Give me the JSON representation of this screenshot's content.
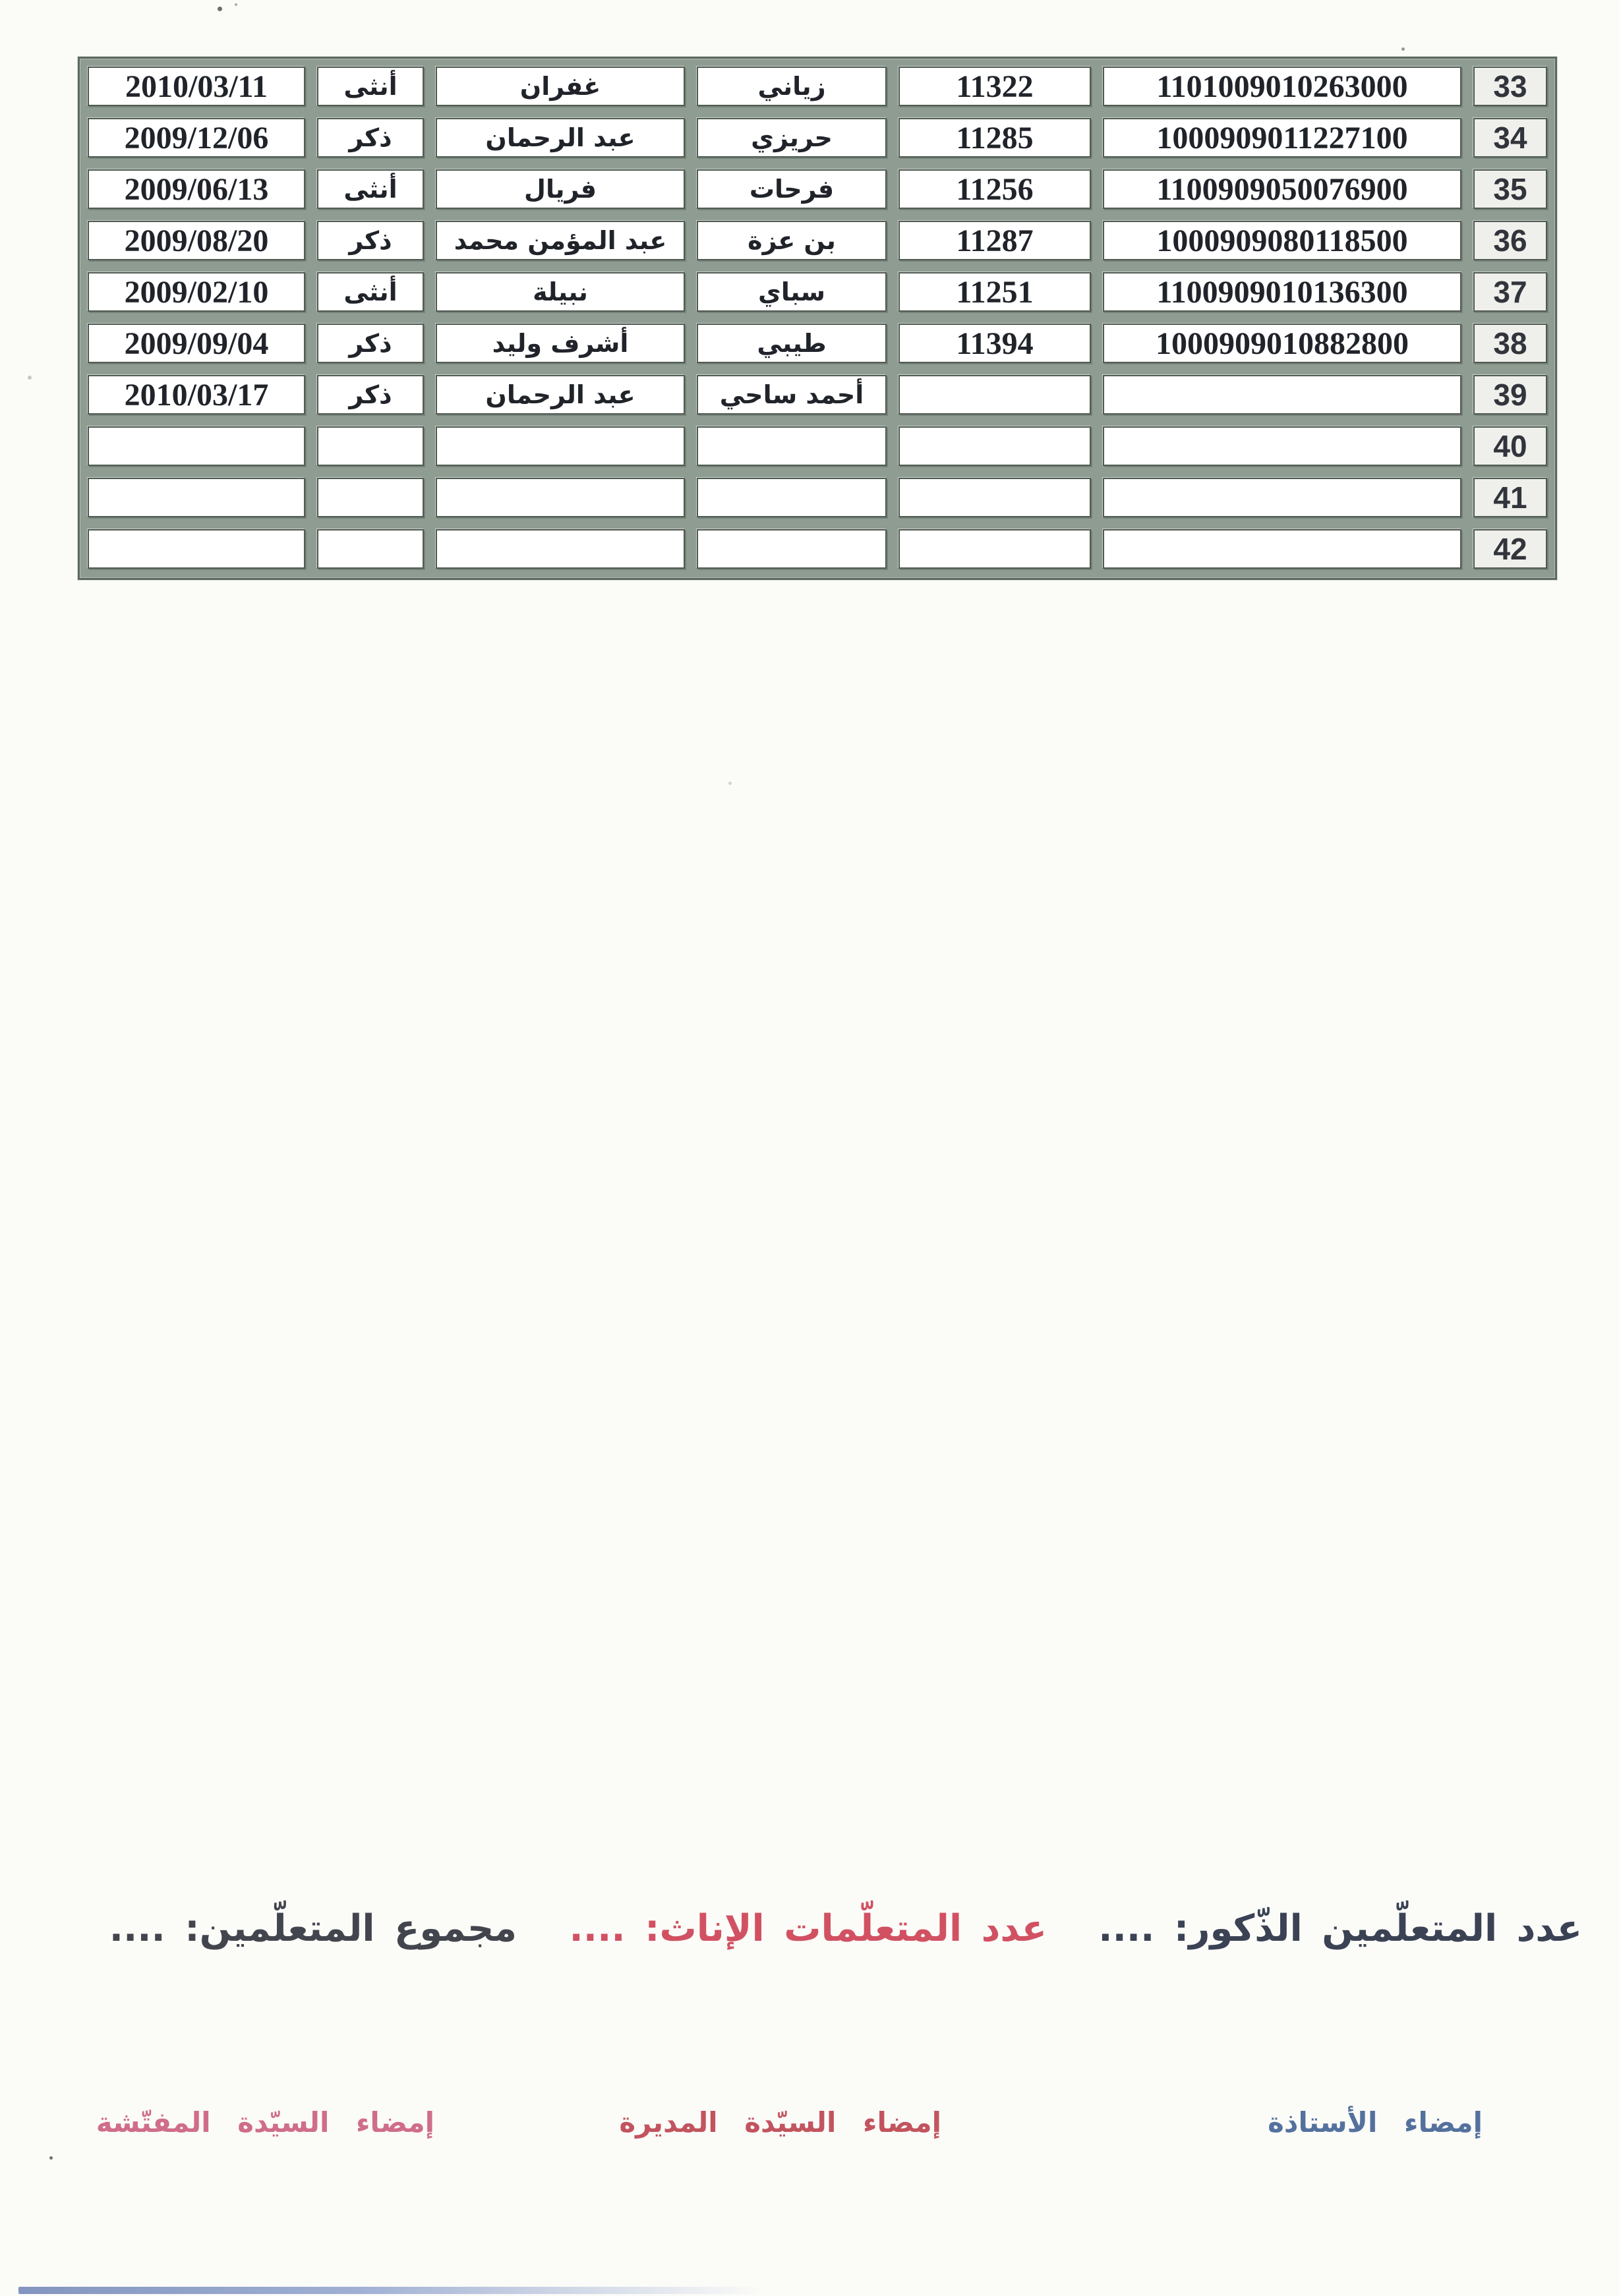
{
  "table": {
    "rows": [
      {
        "no": "33",
        "birth_date": "2010/03/11",
        "gender": "أنثى",
        "first_name": "غفران",
        "last_name": "زياني",
        "short_id": "11322",
        "long_id": "1101009010263000"
      },
      {
        "no": "34",
        "birth_date": "2009/12/06",
        "gender": "ذكر",
        "first_name": "عبد الرحمان",
        "last_name": "حريزي",
        "short_id": "11285",
        "long_id": "1000909011227100"
      },
      {
        "no": "35",
        "birth_date": "2009/06/13",
        "gender": "أنثى",
        "first_name": "فريال",
        "last_name": "فرحات",
        "short_id": "11256",
        "long_id": "1100909050076900"
      },
      {
        "no": "36",
        "birth_date": "2009/08/20",
        "gender": "ذكر",
        "first_name": "عبد المؤمن محمد",
        "last_name": "بن عزة",
        "short_id": "11287",
        "long_id": "1000909080118500"
      },
      {
        "no": "37",
        "birth_date": "2009/02/10",
        "gender": "أنثى",
        "first_name": "نبيلة",
        "last_name": "سباي",
        "short_id": "11251",
        "long_id": "1100909010136300"
      },
      {
        "no": "38",
        "birth_date": "2009/09/04",
        "gender": "ذكر",
        "first_name": "أشرف وليد",
        "last_name": "طيبي",
        "short_id": "11394",
        "long_id": "1000909010882800"
      },
      {
        "no": "39",
        "birth_date": "2010/03/17",
        "gender": "ذكر",
        "first_name": "عبد الرحمان",
        "last_name": "أحمد ساحي",
        "short_id": "",
        "long_id": ""
      },
      {
        "no": "40",
        "birth_date": "",
        "gender": "",
        "first_name": "",
        "last_name": "",
        "short_id": "",
        "long_id": ""
      },
      {
        "no": "41",
        "birth_date": "",
        "gender": "",
        "first_name": "",
        "last_name": "",
        "short_id": "",
        "long_id": ""
      },
      {
        "no": "42",
        "birth_date": "",
        "gender": "",
        "first_name": "",
        "last_name": "",
        "short_id": "",
        "long_id": ""
      }
    ]
  },
  "summary": {
    "males_label": "عدد المتعلّمين الذّكور: ....",
    "females_label": "عدد المتعلّمات الإناث: ....",
    "total_label": "مجموع المتعلّمين: ...."
  },
  "signatures": {
    "teacher": "إمضاء الأستاذة",
    "director": "إمضاء السيّدة المديرة",
    "inspector": "إمضاء السيّدة المفتّشة"
  },
  "colors": {
    "table_band": "#8f9c92",
    "cell_border": "#4f5a51",
    "row_number_bg": "#efefec",
    "summary_dark": "#42454d",
    "summary_navy": "#3a4254",
    "summary_red": "#d15162",
    "signature_pink": "#cf6d8a",
    "signature_red": "#c2545f",
    "signature_blue": "#54719e"
  }
}
